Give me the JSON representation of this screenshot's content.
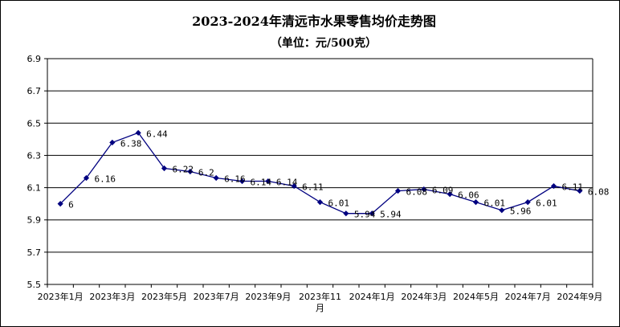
{
  "chart_data": {
    "type": "line",
    "title": "2023-2024年清远市水果零售均价走势图",
    "subtitle": "（单位：元/500克）",
    "xlabel": "",
    "ylabel": "",
    "ylim": [
      5.5,
      6.9
    ],
    "y_ticks": [
      "6.9",
      "6.7",
      "6.5",
      "6.3",
      "6.1",
      "5.9",
      "5.7",
      "5.5"
    ],
    "x_tick_labels": [
      "2023年1月",
      "2023年3月",
      "2023年5月",
      "2023年7月",
      "2023年9月",
      "2023年11月",
      "2024年1月",
      "2024年3月",
      "2024年5月",
      "2024年7月",
      "2024年9月"
    ],
    "grid": true,
    "legend": "none",
    "line_color": "#000080",
    "series": [
      {
        "x": [
          "2023年1月",
          "2023年2月",
          "2023年3月",
          "2023年4月",
          "2023年5月",
          "2023年6月",
          "2023年7月",
          "2023年8月",
          "2023年9月",
          "2023年10月",
          "2023年11月",
          "2023年12月",
          "2024年1月",
          "2024年2月",
          "2024年3月",
          "2024年4月",
          "2024年5月",
          "2024年6月",
          "2024年7月",
          "2024年8月",
          "2024年9月"
        ],
        "values": [
          6,
          6.16,
          6.38,
          6.44,
          6.22,
          6.2,
          6.16,
          6.14,
          6.14,
          6.11,
          6.01,
          5.94,
          5.94,
          6.08,
          6.09,
          6.06,
          6.01,
          5.96,
          6.01,
          6.11,
          6.08
        ],
        "data_labels": [
          "6",
          "6.16",
          "6.38",
          "6.44",
          "6.22",
          "6.2",
          "6.16",
          "6.14",
          "6.14",
          "6.11",
          "6.01",
          "5.94",
          "5.94",
          "6.08",
          "6.09",
          "6.06",
          "6.01",
          "5.96",
          "6.01",
          "6.11",
          "6.08"
        ]
      }
    ]
  }
}
